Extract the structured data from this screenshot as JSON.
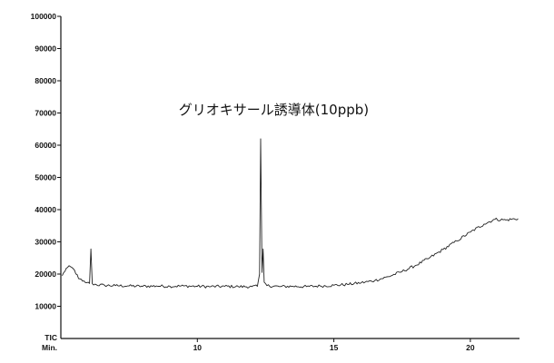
{
  "chart_data": {
    "type": "line",
    "title": "",
    "xlabel": "Min.",
    "ylabel": "TIC",
    "xlim": [
      5,
      21.8
    ],
    "ylim": [
      0,
      100000
    ],
    "grid": false,
    "x_ticks": [
      10,
      15,
      20
    ],
    "x_tick_labels": [
      "10",
      "15",
      "20"
    ],
    "y_ticks": [
      10000,
      20000,
      30000,
      40000,
      50000,
      60000,
      70000,
      80000,
      90000,
      100000
    ],
    "y_tick_labels": [
      "10000",
      "20000",
      "30000",
      "40000",
      "50000",
      "60000",
      "70000",
      "80000",
      "90000",
      "100000"
    ],
    "annotations": [
      {
        "text": "グリオキサール誘導体(10ppb)",
        "x": 12.3,
        "y": 64000
      }
    ],
    "series": [
      {
        "points": [
          [
            5.05,
            19500
          ],
          [
            5.2,
            21800
          ],
          [
            5.35,
            22300
          ],
          [
            5.5,
            21200
          ],
          [
            5.65,
            18600
          ],
          [
            5.8,
            17800
          ],
          [
            5.95,
            17300
          ],
          [
            6.05,
            17100
          ],
          [
            6.1,
            27800
          ],
          [
            6.15,
            17000
          ],
          [
            6.3,
            16700
          ],
          [
            6.6,
            16500
          ],
          [
            7.0,
            16400
          ],
          [
            7.5,
            16300
          ],
          [
            8.0,
            16200
          ],
          [
            8.5,
            16300
          ],
          [
            9.0,
            16200
          ],
          [
            9.5,
            16300
          ],
          [
            10.0,
            16200
          ],
          [
            10.5,
            16100
          ],
          [
            11.0,
            16200
          ],
          [
            11.5,
            16100
          ],
          [
            12.0,
            16100
          ],
          [
            12.2,
            16200
          ],
          [
            12.28,
            20000
          ],
          [
            12.32,
            62000
          ],
          [
            12.37,
            20500
          ],
          [
            12.41,
            27800
          ],
          [
            12.45,
            17500
          ],
          [
            12.55,
            16400
          ],
          [
            13.0,
            16100
          ],
          [
            13.5,
            16200
          ],
          [
            14.0,
            16100
          ],
          [
            14.5,
            16300
          ],
          [
            15.0,
            16500
          ],
          [
            15.5,
            16800
          ],
          [
            16.0,
            17300
          ],
          [
            16.5,
            18000
          ],
          [
            17.0,
            19200
          ],
          [
            17.5,
            20800
          ],
          [
            18.0,
            22700
          ],
          [
            18.5,
            25000
          ],
          [
            19.0,
            27600
          ],
          [
            19.5,
            30300
          ],
          [
            20.0,
            33000
          ],
          [
            20.5,
            35500
          ],
          [
            20.9,
            37000
          ],
          [
            21.3,
            36800
          ],
          [
            21.75,
            37200
          ]
        ]
      }
    ]
  }
}
